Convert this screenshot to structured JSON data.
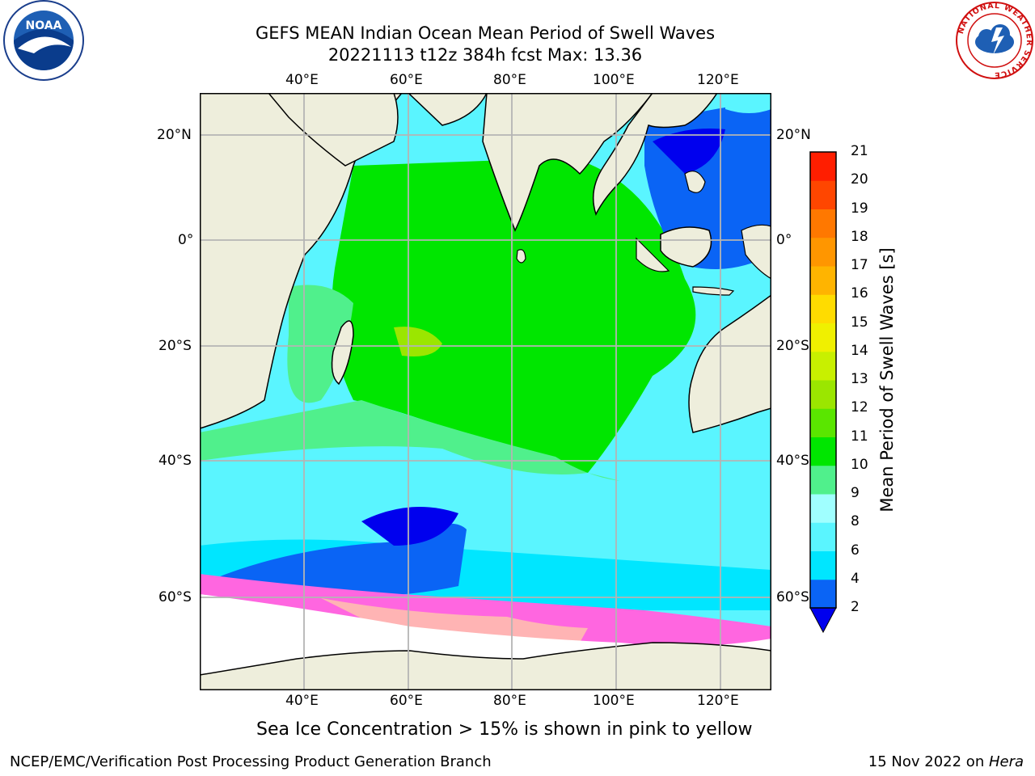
{
  "title": {
    "line1": "GEFS MEAN Indian Ocean Mean Period of Swell Waves",
    "line2": "20221113 t12z 384h fcst   Max: 13.36"
  },
  "map": {
    "lon_ticks": [
      "40°E",
      "60°E",
      "80°E",
      "100°E",
      "120°E"
    ],
    "lat_ticks": [
      "20°N",
      "0°",
      "20°S",
      "40°S",
      "60°S"
    ]
  },
  "colorbar": {
    "label": "Mean Period of Swell Waves [s]",
    "ticks": [
      "2",
      "4",
      "6",
      "8",
      "9",
      "10",
      "11",
      "12",
      "13",
      "14",
      "15",
      "16",
      "17",
      "18",
      "19",
      "20",
      "21"
    ],
    "colors": [
      "#0a64f5",
      "#00e6ff",
      "#5af5ff",
      "#a0ffff",
      "#50f08c",
      "#00e600",
      "#5ae600",
      "#9be600",
      "#c8f000",
      "#f0f000",
      "#ffdc00",
      "#ffb400",
      "#ff9600",
      "#ff7800",
      "#ff4600",
      "#ff1e00"
    ],
    "under_color": "#0000ee"
  },
  "note": "Sea Ice Concentration > 15% is shown in pink to yellow",
  "footer": {
    "left": "NCEP/EMC/Verification Post Processing Product Generation Branch",
    "right_date": "15 Nov 2022 on ",
    "right_machine": "Hera"
  },
  "logos": {
    "noaa": "NOAA",
    "nws_ring": "NATIONAL WEATHER SERVICE"
  }
}
